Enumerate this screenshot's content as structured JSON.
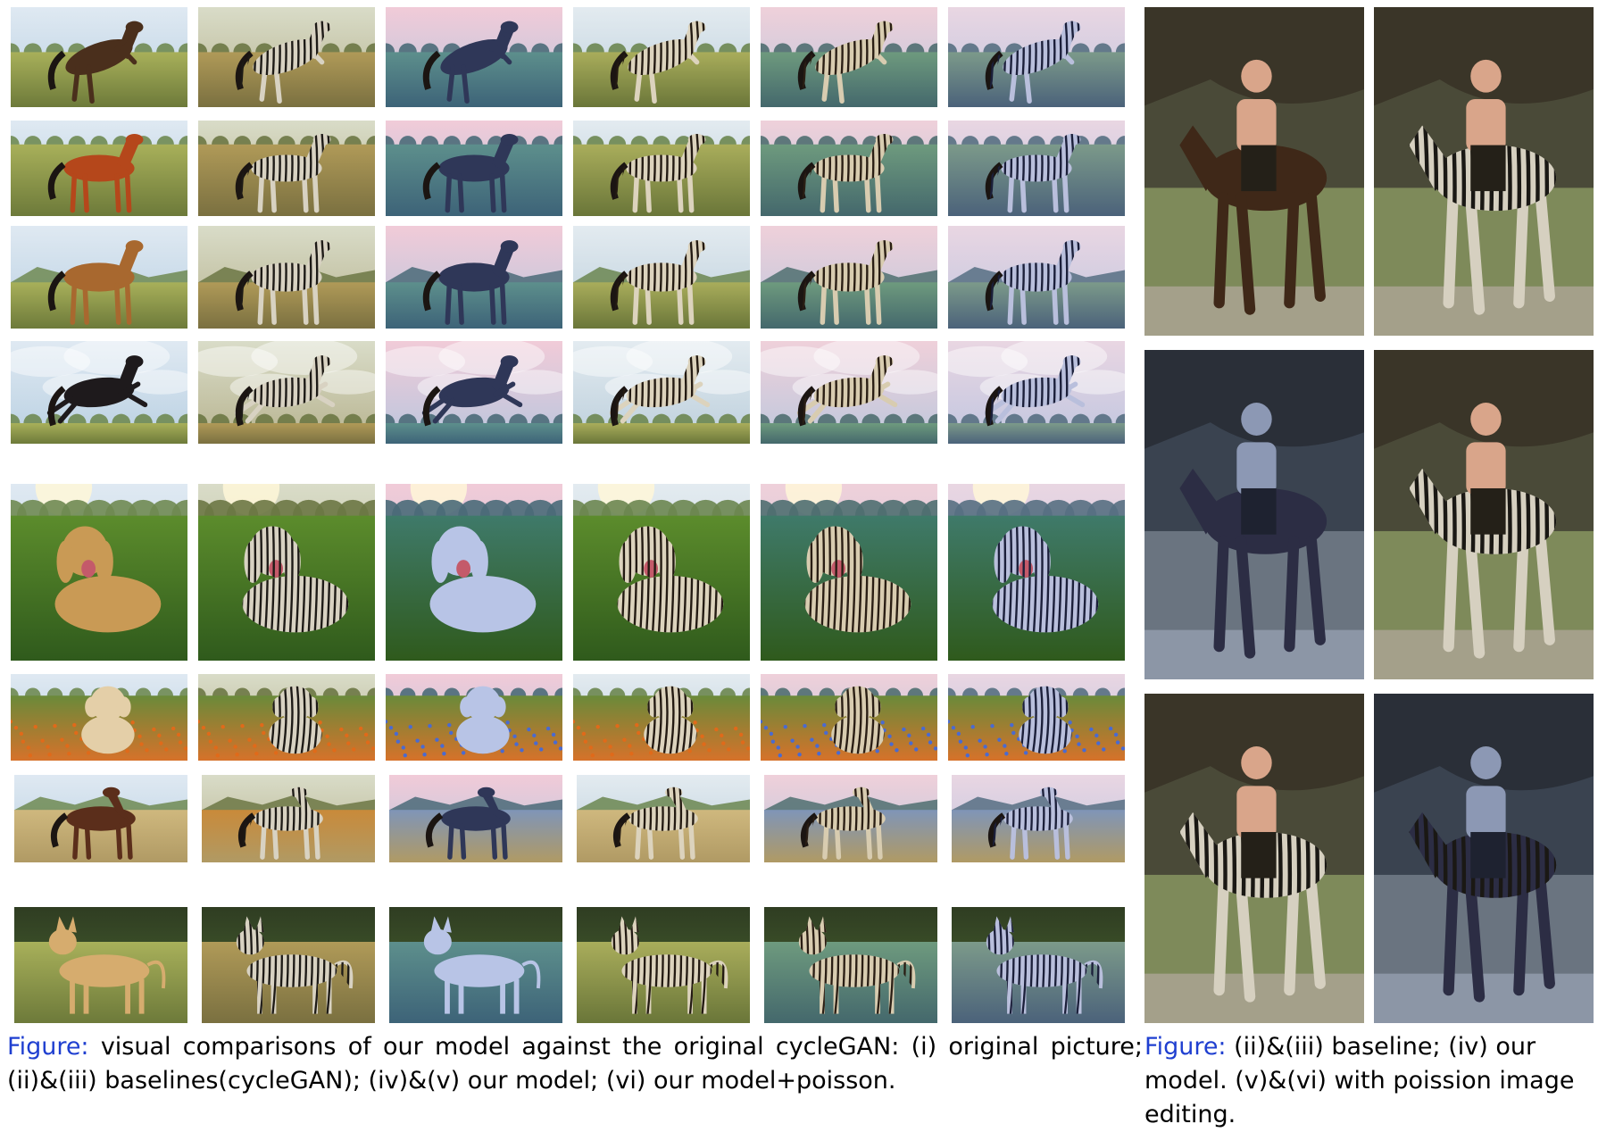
{
  "figure": {
    "left_caption": {
      "label": "Figure:",
      "text": "visual comparisons of our model against the original cycleGAN: (i) original picture; (ii)&(iii) baselines(cycleGAN); (iv)&(v) our model; (vi) our model+poisson."
    },
    "right_caption": {
      "label": "Figure:",
      "text": "(ii)&(iii) baseline; (iv) our model. (v)&(vi) with poission image editing."
    }
  },
  "left_grid": {
    "row_subjects": [
      "rearing-horse",
      "chestnut-horse",
      "horse-mountains",
      "black-horse-jumping",
      "golden-retriever",
      "puppy-flowers",
      "horse-prairie",
      "dog-standing"
    ],
    "column_styles": [
      "original",
      "baseline-cyclegan",
      "baseline-cyclegan-blue",
      "our-model",
      "our-model-v",
      "our-model-poisson"
    ]
  },
  "right_grid": {
    "panels": [
      "rider-horse-original",
      "rider-zebra-baseline",
      "rider-blue-baseline",
      "rider-zebra-our-model",
      "rider-zebra-poisson",
      "rider-blue-poisson"
    ]
  }
}
